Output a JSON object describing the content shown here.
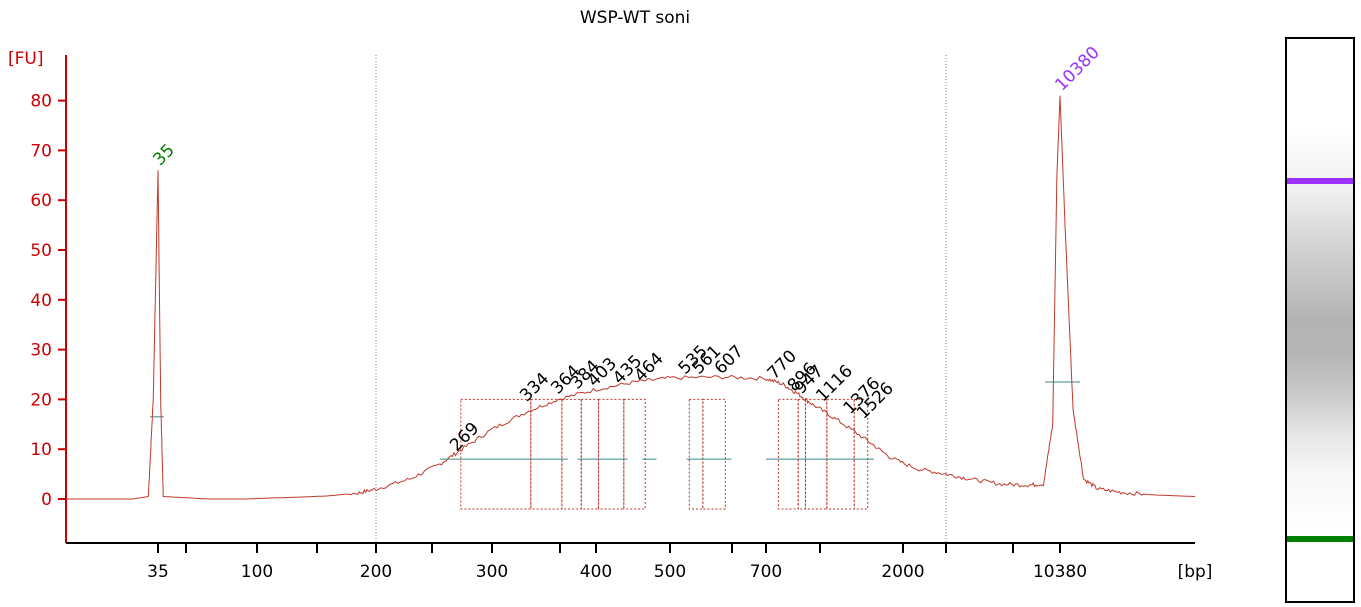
{
  "chart_data": {
    "type": "line",
    "title": "WSP-WT soni",
    "ylabel": "[FU]",
    "xlabel": "[bp]",
    "ylim": [
      -8,
      90
    ],
    "yticks": [
      0,
      10,
      20,
      30,
      40,
      50,
      60,
      70,
      80
    ],
    "xtick_labels": [
      "35",
      "100",
      "200",
      "300",
      "400",
      "500",
      "700",
      "2000",
      "10380"
    ],
    "xtick_unlabeled_count": 6,
    "x_gridlines_bp": [
      200,
      2600
    ],
    "colors": {
      "axis": "#cc0000",
      "trace": "#c0392b",
      "lower_marker": "#008000",
      "upper_marker": "#9b30ff",
      "baseline": "#3a8a8a",
      "grid": "#7a7ab8"
    },
    "markers": [
      {
        "name": "35",
        "bp": 35,
        "height": 66,
        "color": "#008000"
      },
      {
        "name": "10380",
        "bp": 10380,
        "height": 81,
        "color": "#9b30ff"
      }
    ],
    "peak_labels": [
      {
        "text": "269",
        "bp": 269,
        "y": 9
      },
      {
        "text": "334",
        "bp": 334,
        "y": 19
      },
      {
        "text": "364",
        "bp": 364,
        "y": 20.5
      },
      {
        "text": "384",
        "bp": 384,
        "y": 21.5
      },
      {
        "text": "403",
        "bp": 403,
        "y": 22
      },
      {
        "text": "435",
        "bp": 435,
        "y": 22.5
      },
      {
        "text": "464",
        "bp": 464,
        "y": 23
      },
      {
        "text": "535",
        "bp": 535,
        "y": 24.5
      },
      {
        "text": "561",
        "bp": 561,
        "y": 24.5
      },
      {
        "text": "607",
        "bp": 607,
        "y": 24.5
      },
      {
        "text": "770",
        "bp": 770,
        "y": 23.5
      },
      {
        "text": "896",
        "bp": 896,
        "y": 21
      },
      {
        "text": "947",
        "bp": 947,
        "y": 20.5
      },
      {
        "text": "1116",
        "bp": 1116,
        "y": 19
      },
      {
        "text": "1376",
        "bp": 1376,
        "y": 16.5
      },
      {
        "text": "1526",
        "bp": 1526,
        "y": 15.5
      }
    ],
    "trace_points": [
      [
        20,
        0
      ],
      [
        30,
        0
      ],
      [
        33,
        0.5
      ],
      [
        34,
        20
      ],
      [
        35,
        66
      ],
      [
        36,
        20
      ],
      [
        37,
        0.5
      ],
      [
        45,
        0.3
      ],
      [
        60,
        0
      ],
      [
        90,
        0
      ],
      [
        120,
        0.3
      ],
      [
        150,
        0.6
      ],
      [
        180,
        1.2
      ],
      [
        200,
        2
      ],
      [
        225,
        4
      ],
      [
        250,
        7
      ],
      [
        270,
        10
      ],
      [
        300,
        14
      ],
      [
        330,
        17.5
      ],
      [
        360,
        20
      ],
      [
        400,
        22
      ],
      [
        450,
        23.5
      ],
      [
        500,
        24.3
      ],
      [
        600,
        24.5
      ],
      [
        700,
        24.2
      ],
      [
        800,
        23
      ],
      [
        900,
        21
      ],
      [
        1000,
        19
      ],
      [
        1200,
        16
      ],
      [
        1500,
        12
      ],
      [
        1800,
        8.5
      ],
      [
        2200,
        6
      ],
      [
        2600,
        5
      ],
      [
        3500,
        4
      ],
      [
        5000,
        3
      ],
      [
        7000,
        2.8
      ],
      [
        8500,
        3
      ],
      [
        9500,
        15
      ],
      [
        10000,
        65
      ],
      [
        10380,
        81
      ],
      [
        10800,
        55
      ],
      [
        11500,
        18
      ],
      [
        12500,
        4
      ],
      [
        14000,
        2
      ],
      [
        17000,
        1.3
      ],
      [
        22000,
        0.8
      ],
      [
        30000,
        0.5
      ]
    ]
  },
  "gel": {
    "upper_band_color": "#9b30ff",
    "lower_band_color": "#008000"
  }
}
